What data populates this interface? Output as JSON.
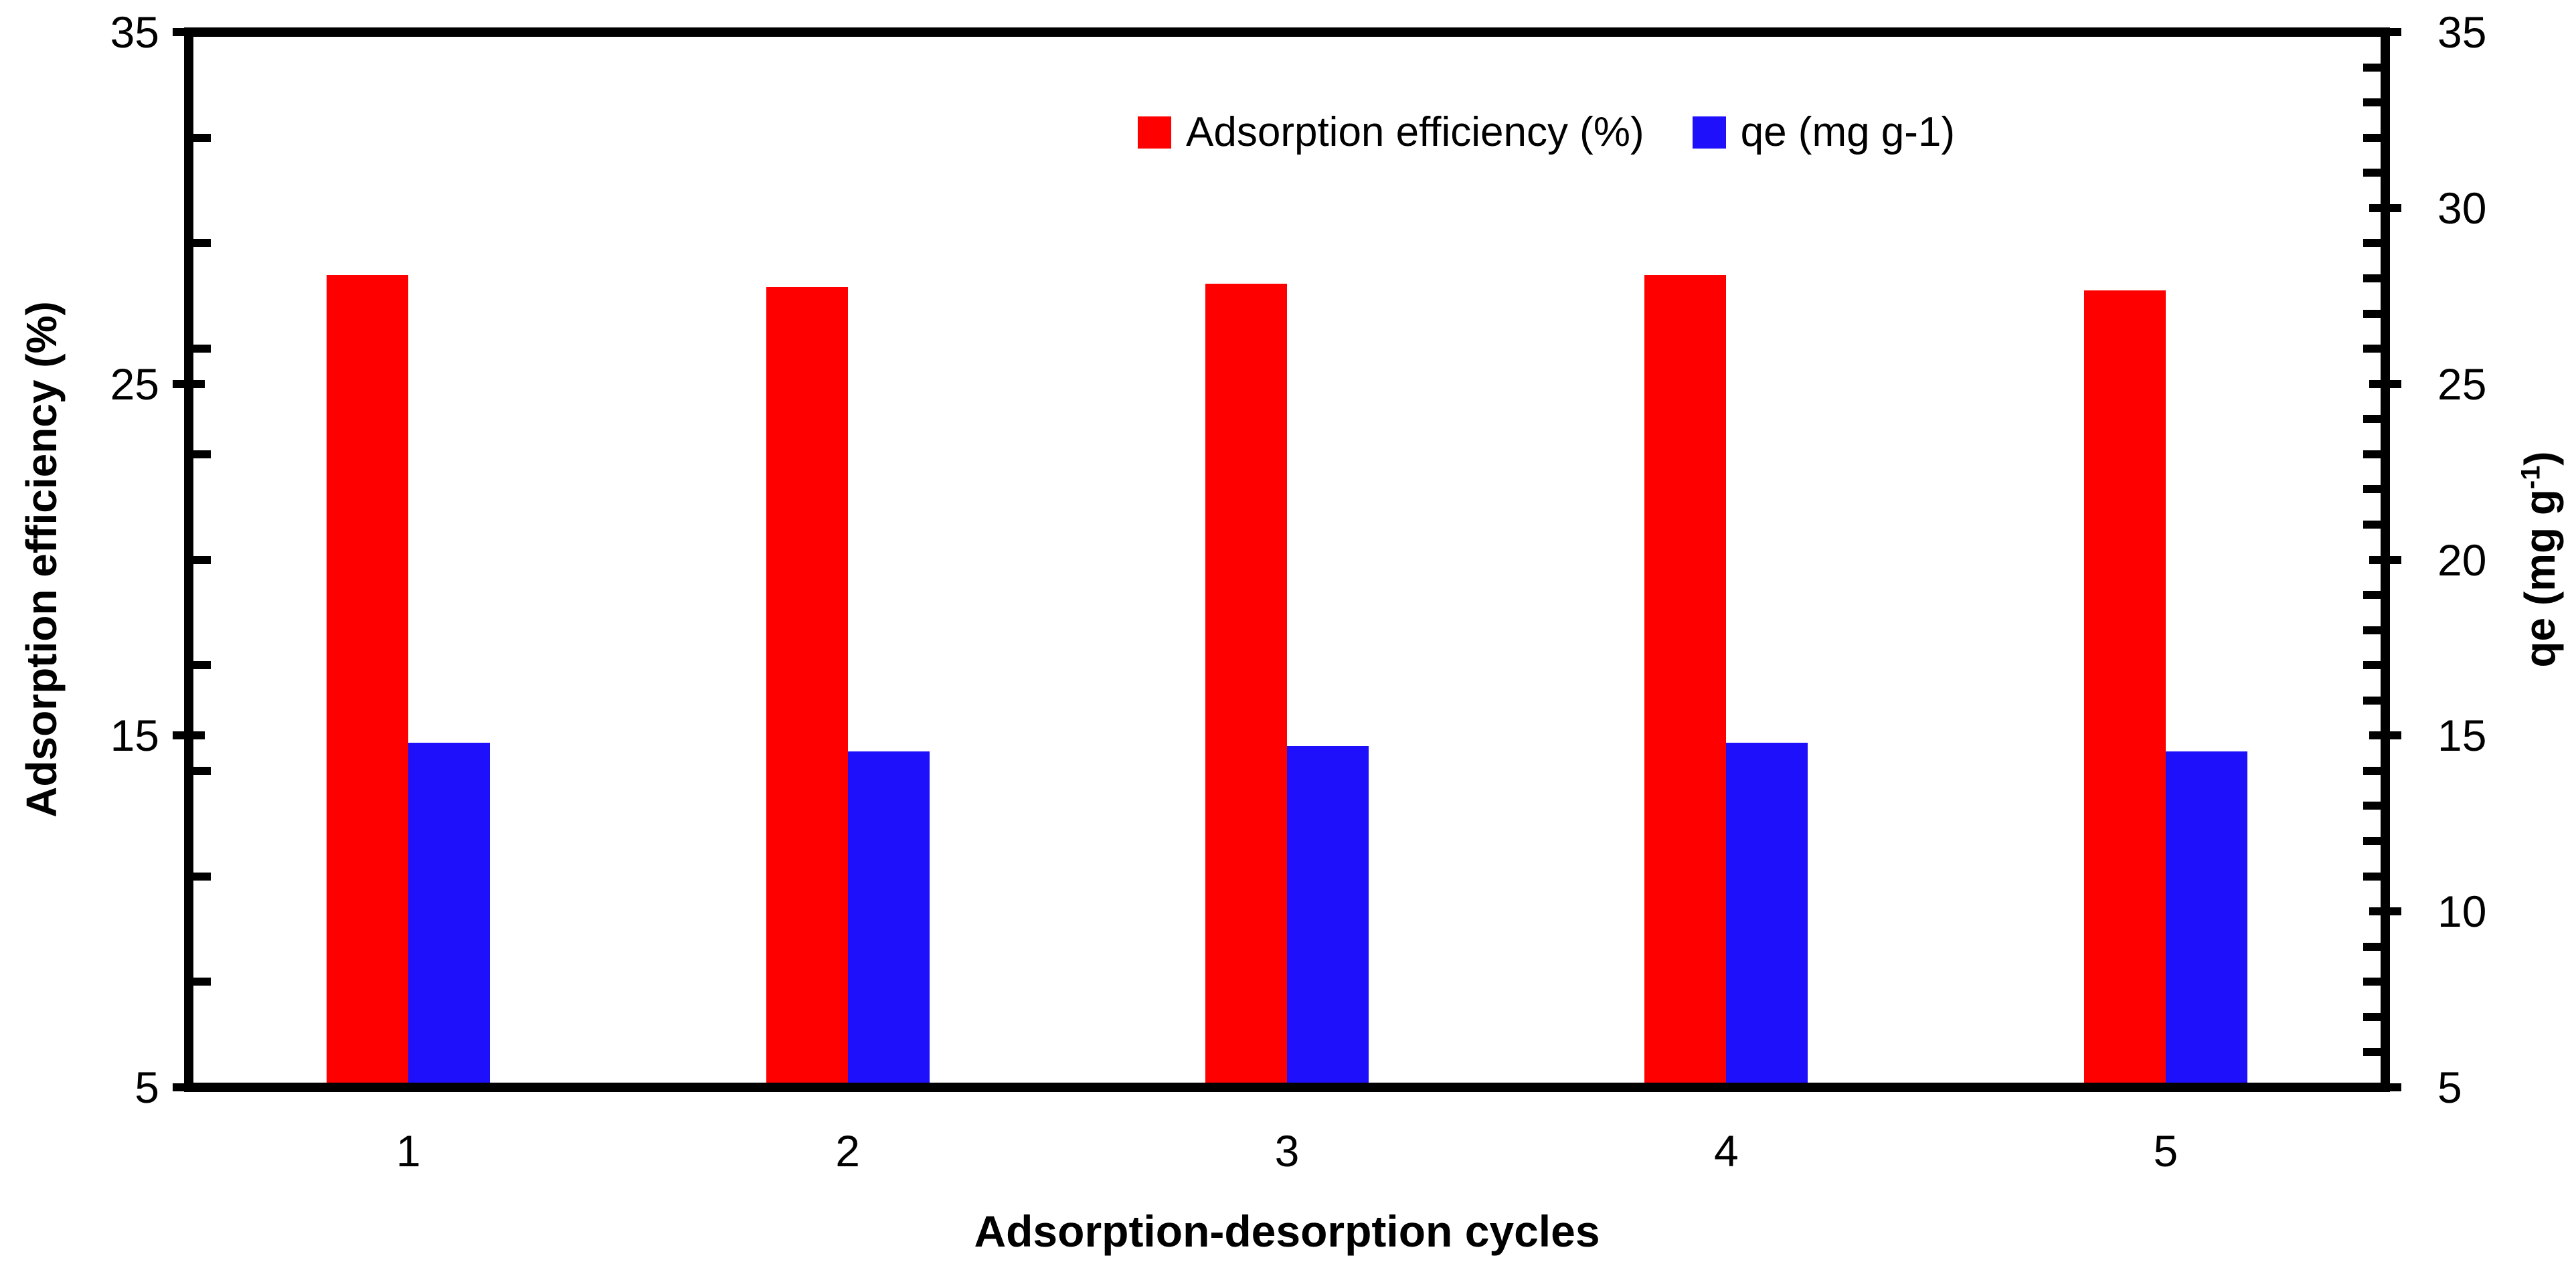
{
  "chart_data": {
    "type": "bar",
    "title": "",
    "xlabel": "Adsorption-desorption cycles",
    "categories": [
      "1",
      "2",
      "3",
      "4",
      "5"
    ],
    "series": [
      {
        "name": "Adsorption efficiency (%)",
        "axis": "left",
        "color": "#FF0000",
        "values": [
          28.1,
          27.75,
          27.85,
          28.1,
          27.65
        ]
      },
      {
        "name": "qe (mg g-1)",
        "axis": "right",
        "color": "#1E10FA",
        "values": [
          14.8,
          14.55,
          14.7,
          14.8,
          14.55
        ]
      }
    ],
    "left_axis": {
      "label": "Adsorption efficiency (%)",
      "min": 5,
      "max": 35,
      "major_ticks": [
        35,
        25,
        15,
        5
      ],
      "minor_ticks": [
        32,
        29,
        26,
        23,
        20,
        17,
        14,
        11,
        8
      ]
    },
    "right_axis": {
      "label_prefix": "qe (mg g",
      "label_sup": "-1",
      "label_suffix": ")",
      "min": 5,
      "max": 35,
      "major_ticks": [
        35,
        30,
        25,
        20,
        15,
        10,
        5
      ],
      "minor_step": 1
    },
    "legend": {
      "position": "top-inside",
      "items": [
        {
          "label": "Adsorption efficiency (%)",
          "color": "#FF0000"
        },
        {
          "label": "qe (mg g-1)",
          "color": "#1E10FA"
        }
      ]
    },
    "colors": {
      "axis": "#000000",
      "background": "#FFFFFF",
      "red_series": "#FF0000",
      "blue_series": "#1E10FA"
    },
    "grid": "off"
  }
}
